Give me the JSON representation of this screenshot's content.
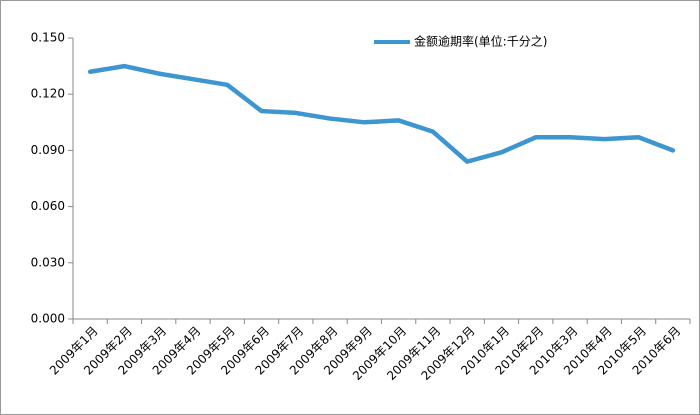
{
  "chart_data": {
    "type": "line",
    "categories": [
      "2009年1月",
      "2009年2月",
      "2009年3月",
      "2009年4月",
      "2009年5月",
      "2009年6月",
      "2009年7月",
      "2009年8月",
      "2009年9月",
      "2009年10月",
      "2009年11月",
      "2009年12月",
      "2010年1月",
      "2010年2月",
      "2010年3月",
      "2010年4月",
      "2010年5月",
      "2010年6月"
    ],
    "series": [
      {
        "name": "金额逾期率(单位:千分之)",
        "color": "#3d96d0",
        "values": [
          0.132,
          0.135,
          0.131,
          0.128,
          0.125,
          0.111,
          0.11,
          0.107,
          0.105,
          0.106,
          0.1,
          0.084,
          0.089,
          0.097,
          0.097,
          0.096,
          0.097,
          0.09
        ]
      }
    ],
    "ylim": [
      0,
      0.15
    ],
    "yticks": [
      {
        "value": 0,
        "label": "0.000"
      },
      {
        "value": 0.03,
        "label": "0.030"
      },
      {
        "value": 0.06,
        "label": "0.060"
      },
      {
        "value": 0.09,
        "label": "0.090"
      },
      {
        "value": 0.12,
        "label": "0.120"
      },
      {
        "value": 0.15,
        "label": "0.150"
      }
    ],
    "grid": false,
    "legend": "top-right"
  }
}
